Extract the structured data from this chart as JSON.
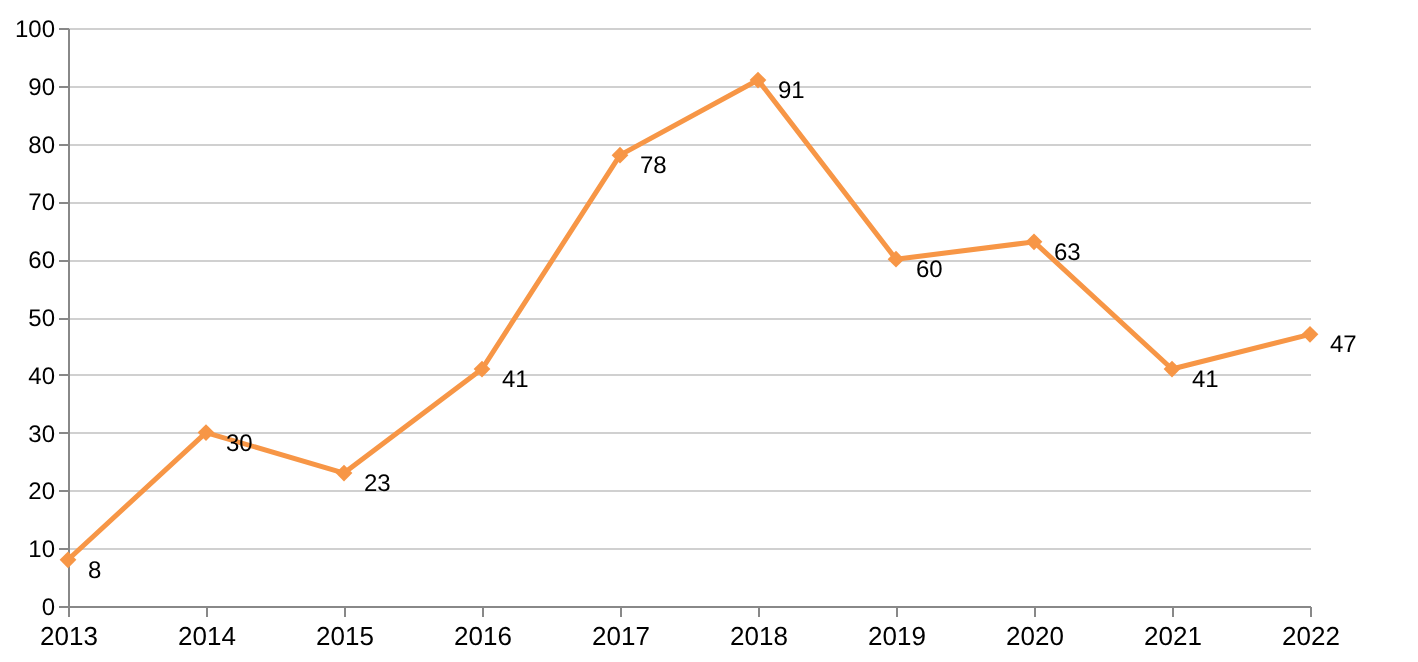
{
  "chart_data": {
    "type": "line",
    "categories": [
      "2013",
      "2014",
      "2015",
      "2016",
      "2017",
      "2018",
      "2019",
      "2020",
      "2021",
      "2022"
    ],
    "series": [
      {
        "color": "#f79646",
        "values": [
          8,
          30,
          23,
          41,
          78,
          91,
          60,
          63,
          41,
          47
        ]
      }
    ],
    "ylim": [
      0,
      100
    ],
    "yticks": [
      0,
      10,
      20,
      30,
      40,
      50,
      60,
      70,
      80,
      90,
      100
    ],
    "grid": "y",
    "marker": "diamond",
    "line_style": "solid",
    "data_labels": true
  }
}
